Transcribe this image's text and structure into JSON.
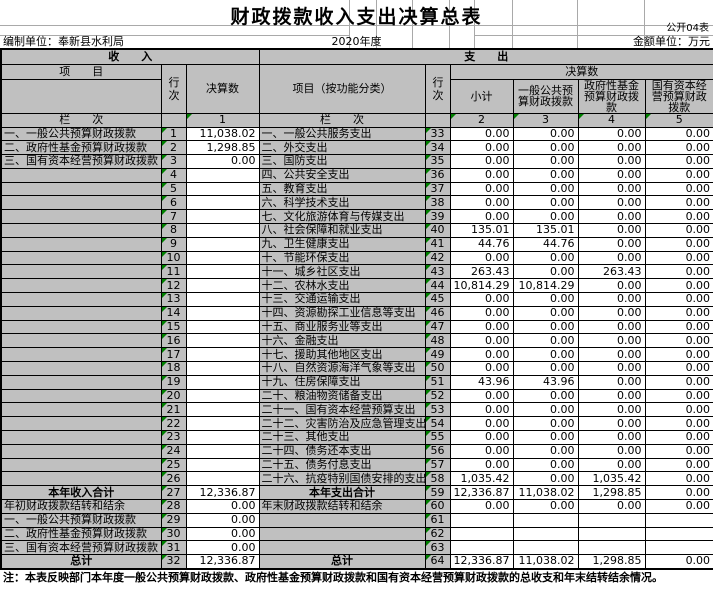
{
  "meta": {
    "title": "财政拨款收入支出决算总表",
    "form_no": "公开04表",
    "unit_label": "编制单位：奉新县水利局",
    "year": "2020年度",
    "amount_unit": "金额单位：万元"
  },
  "header": {
    "income": "收　　入",
    "expenditure": "支　　出",
    "item": "项　　目",
    "row_no": "行次",
    "final_amount": "决算数",
    "item_func": "项目（按功能分类）",
    "subtotal": "小计",
    "general_budget": "一般公共预算财政拨款",
    "gov_fund": "政府性基金预算财政拨款",
    "state_capital": "国有资本经营预算财政拨款",
    "column_label": "栏　　次",
    "col_nums": [
      "1",
      "2",
      "3",
      "4",
      "5"
    ]
  },
  "colors": {
    "cell_gray": "#c0c0c0",
    "triangle_green": "#008000",
    "border_black": "#000000"
  },
  "note": "注：本表反映部门本年度一般公共预算财政拨款、政府性基金预算财政拨款和国有资本经营预算财政拨款的总收支和年末结转结余情况。",
  "rows": [
    {
      "l": [
        "一、一般公共预算财政拨款",
        "1",
        "11,038.02"
      ],
      "r": [
        "一、一般公共服务支出",
        "33",
        "0.00",
        "0.00",
        "0.00",
        "0.00"
      ]
    },
    {
      "l": [
        "二、政府性基金预算财政拨款",
        "2",
        "1,298.85"
      ],
      "r": [
        "二、外交支出",
        "34",
        "0.00",
        "0.00",
        "0.00",
        "0.00"
      ]
    },
    {
      "l": [
        "三、国有资本经营预算财政拨款",
        "3",
        "0.00"
      ],
      "r": [
        "三、国防支出",
        "35",
        "0.00",
        "0.00",
        "0.00",
        "0.00"
      ]
    },
    {
      "l": [
        "",
        "4",
        ""
      ],
      "r": [
        "四、公共安全支出",
        "36",
        "0.00",
        "0.00",
        "0.00",
        "0.00"
      ]
    },
    {
      "l": [
        "",
        "5",
        ""
      ],
      "r": [
        "五、教育支出",
        "37",
        "0.00",
        "0.00",
        "0.00",
        "0.00"
      ]
    },
    {
      "l": [
        "",
        "6",
        ""
      ],
      "r": [
        "六、科学技术支出",
        "38",
        "0.00",
        "0.00",
        "0.00",
        "0.00"
      ]
    },
    {
      "l": [
        "",
        "7",
        ""
      ],
      "r": [
        "七、文化旅游体育与传媒支出",
        "39",
        "0.00",
        "0.00",
        "0.00",
        "0.00"
      ]
    },
    {
      "l": [
        "",
        "8",
        ""
      ],
      "r": [
        "八、社会保障和就业支出",
        "40",
        "135.01",
        "135.01",
        "0.00",
        "0.00"
      ]
    },
    {
      "l": [
        "",
        "9",
        ""
      ],
      "r": [
        "九、卫生健康支出",
        "41",
        "44.76",
        "44.76",
        "0.00",
        "0.00"
      ]
    },
    {
      "l": [
        "",
        "10",
        ""
      ],
      "r": [
        "十、节能环保支出",
        "42",
        "0.00",
        "0.00",
        "0.00",
        "0.00"
      ]
    },
    {
      "l": [
        "",
        "11",
        ""
      ],
      "r": [
        "十一、城乡社区支出",
        "43",
        "263.43",
        "0.00",
        "263.43",
        "0.00"
      ]
    },
    {
      "l": [
        "",
        "12",
        ""
      ],
      "r": [
        "十二、农林水支出",
        "44",
        "10,814.29",
        "10,814.29",
        "0.00",
        "0.00"
      ]
    },
    {
      "l": [
        "",
        "13",
        ""
      ],
      "r": [
        "十三、交通运输支出",
        "45",
        "0.00",
        "0.00",
        "0.00",
        "0.00"
      ]
    },
    {
      "l": [
        "",
        "14",
        ""
      ],
      "r": [
        "十四、资源勘探工业信息等支出",
        "46",
        "0.00",
        "0.00",
        "0.00",
        "0.00"
      ]
    },
    {
      "l": [
        "",
        "15",
        ""
      ],
      "r": [
        "十五、商业服务业等支出",
        "47",
        "0.00",
        "0.00",
        "0.00",
        "0.00"
      ]
    },
    {
      "l": [
        "",
        "16",
        ""
      ],
      "r": [
        "十六、金融支出",
        "48",
        "0.00",
        "0.00",
        "0.00",
        "0.00"
      ]
    },
    {
      "l": [
        "",
        "17",
        ""
      ],
      "r": [
        "十七、援助其他地区支出",
        "49",
        "0.00",
        "0.00",
        "0.00",
        "0.00"
      ]
    },
    {
      "l": [
        "",
        "18",
        ""
      ],
      "r": [
        "十八、自然资源海洋气象等支出",
        "50",
        "0.00",
        "0.00",
        "0.00",
        "0.00"
      ]
    },
    {
      "l": [
        "",
        "19",
        ""
      ],
      "r": [
        "十九、住房保障支出",
        "51",
        "43.96",
        "43.96",
        "0.00",
        "0.00"
      ]
    },
    {
      "l": [
        "",
        "20",
        ""
      ],
      "r": [
        "二十、粮油物资储备支出",
        "52",
        "0.00",
        "0.00",
        "0.00",
        "0.00"
      ]
    },
    {
      "l": [
        "",
        "21",
        ""
      ],
      "r": [
        "二十一、国有资本经营预算支出",
        "53",
        "0.00",
        "0.00",
        "0.00",
        "0.00"
      ]
    },
    {
      "l": [
        "",
        "22",
        ""
      ],
      "r": [
        "二十二、灾害防治及应急管理支出",
        "54",
        "0.00",
        "0.00",
        "0.00",
        "0.00"
      ]
    },
    {
      "l": [
        "",
        "23",
        ""
      ],
      "r": [
        "二十三、其他支出",
        "55",
        "0.00",
        "0.00",
        "0.00",
        "0.00"
      ]
    },
    {
      "l": [
        "",
        "24",
        ""
      ],
      "r": [
        "二十四、债务还本支出",
        "56",
        "0.00",
        "0.00",
        "0.00",
        "0.00"
      ]
    },
    {
      "l": [
        "",
        "25",
        ""
      ],
      "r": [
        "二十五、债务付息支出",
        "57",
        "0.00",
        "0.00",
        "0.00",
        "0.00"
      ]
    },
    {
      "l": [
        "",
        "26",
        ""
      ],
      "r": [
        "二十六、抗疫特别国债安排的支出",
        "58",
        "1,035.42",
        "0.00",
        "1,035.42",
        "0.00"
      ]
    },
    {
      "l": [
        "本年收入合计",
        "27",
        "12,336.87"
      ],
      "lb": true,
      "r": [
        "本年支出合计",
        "59",
        "12,336.87",
        "11,038.02",
        "1,298.85",
        "0.00"
      ],
      "rb": true
    },
    {
      "l": [
        "年初财政拨款结转和结余",
        "28",
        "0.00"
      ],
      "r": [
        "年末财政拨款结转和结余",
        "60",
        "0.00",
        "0.00",
        "0.00",
        "0.00"
      ]
    },
    {
      "l": [
        "一、一般公共预算财政拨款",
        "29",
        "0.00"
      ],
      "r": [
        "",
        "61",
        "",
        "",
        "",
        ""
      ]
    },
    {
      "l": [
        "二、政府性基金预算财政拨款",
        "30",
        "0.00"
      ],
      "r": [
        "",
        "62",
        "",
        "",
        "",
        ""
      ]
    },
    {
      "l": [
        "三、国有资本经营预算财政拨款",
        "31",
        "0.00"
      ],
      "r": [
        "",
        "63",
        "",
        "",
        "",
        ""
      ]
    },
    {
      "l": [
        "总计",
        "32",
        "12,336.87"
      ],
      "lb": true,
      "r": [
        "总计",
        "64",
        "12,336.87",
        "11,038.02",
        "1,298.85",
        "0.00"
      ],
      "rb": true
    }
  ]
}
